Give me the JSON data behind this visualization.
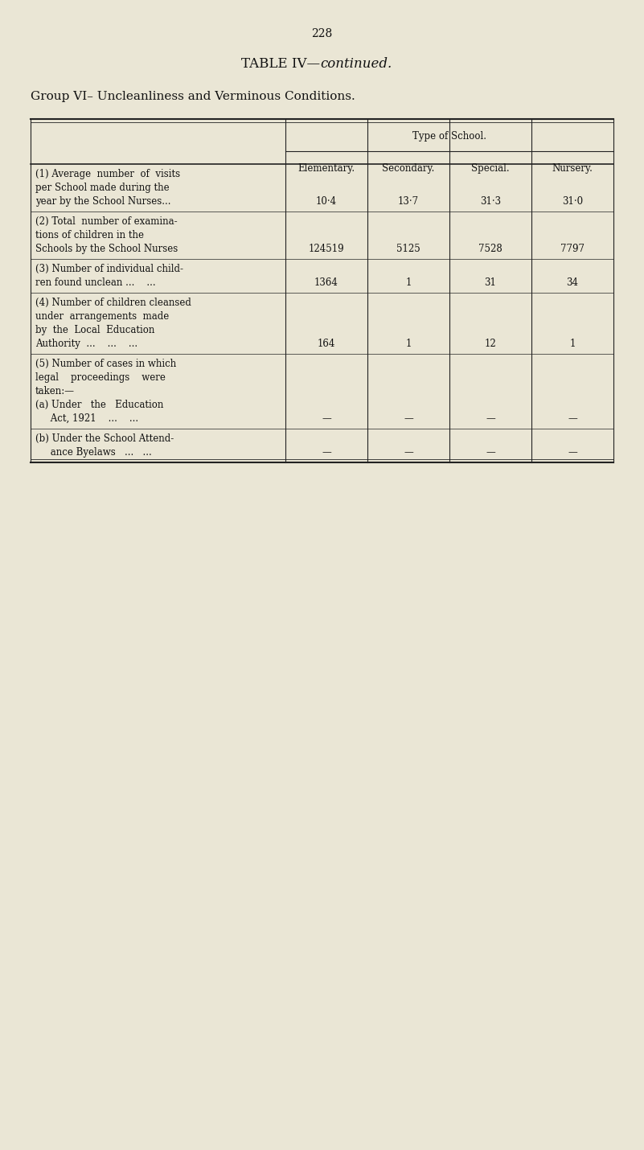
{
  "page_number": "228",
  "title_text": "TABLE IV—",
  "title_italic": "continued.",
  "group_heading": "Group VI– Uncleanliness and Verminous Conditions.",
  "col_header_group": "Type of School.",
  "col_headers": [
    "Elementary.",
    "Secondary.",
    "Special.",
    "Nursery."
  ],
  "rows": [
    {
      "label_lines": [
        "(1) Average  number  of  visits",
        "per School made during the",
        "year by the School Nurses..."
      ],
      "values": [
        "10·4",
        "13·7",
        "31·3",
        "31·0"
      ],
      "val_line_idx": 2
    },
    {
      "label_lines": [
        "(2) Total  number of examina-",
        "tions of children in the",
        "Schools by the School Nurses"
      ],
      "values": [
        "124519",
        "5125",
        "7528",
        "7797"
      ],
      "val_line_idx": 2
    },
    {
      "label_lines": [
        "(3) Number of individual child-",
        "ren found unclean ...    ..."
      ],
      "values": [
        "1364",
        "1",
        "31",
        "34"
      ],
      "val_line_idx": 1
    },
    {
      "label_lines": [
        "(4) Number of children cleansed",
        "under  arrangements  made",
        "by  the  Local  Education",
        "Authority  ...    ...    ..."
      ],
      "values": [
        "164",
        "1",
        "12",
        "1"
      ],
      "val_line_idx": 3
    },
    {
      "label_lines": [
        "(5) Number of cases in which",
        "legal    proceedings    were",
        "taken:—",
        "(a) Under   the   Education",
        "     Act, 1921    ...    ..."
      ],
      "values": [
        "—",
        "—",
        "—",
        "—"
      ],
      "val_line_idx": 4
    },
    {
      "label_lines": [
        "(b) Under the School Attend-",
        "     ance Byelaws   ...   ..."
      ],
      "values": [
        "—",
        "—",
        "—",
        "—"
      ],
      "val_line_idx": 1
    }
  ],
  "bg_color": "#eae6d5",
  "text_color": "#111111",
  "line_color": "#222222",
  "font_size_page": 10,
  "font_size_title": 12,
  "font_size_group": 11,
  "font_size_header": 8.5,
  "font_size_body": 8.5
}
